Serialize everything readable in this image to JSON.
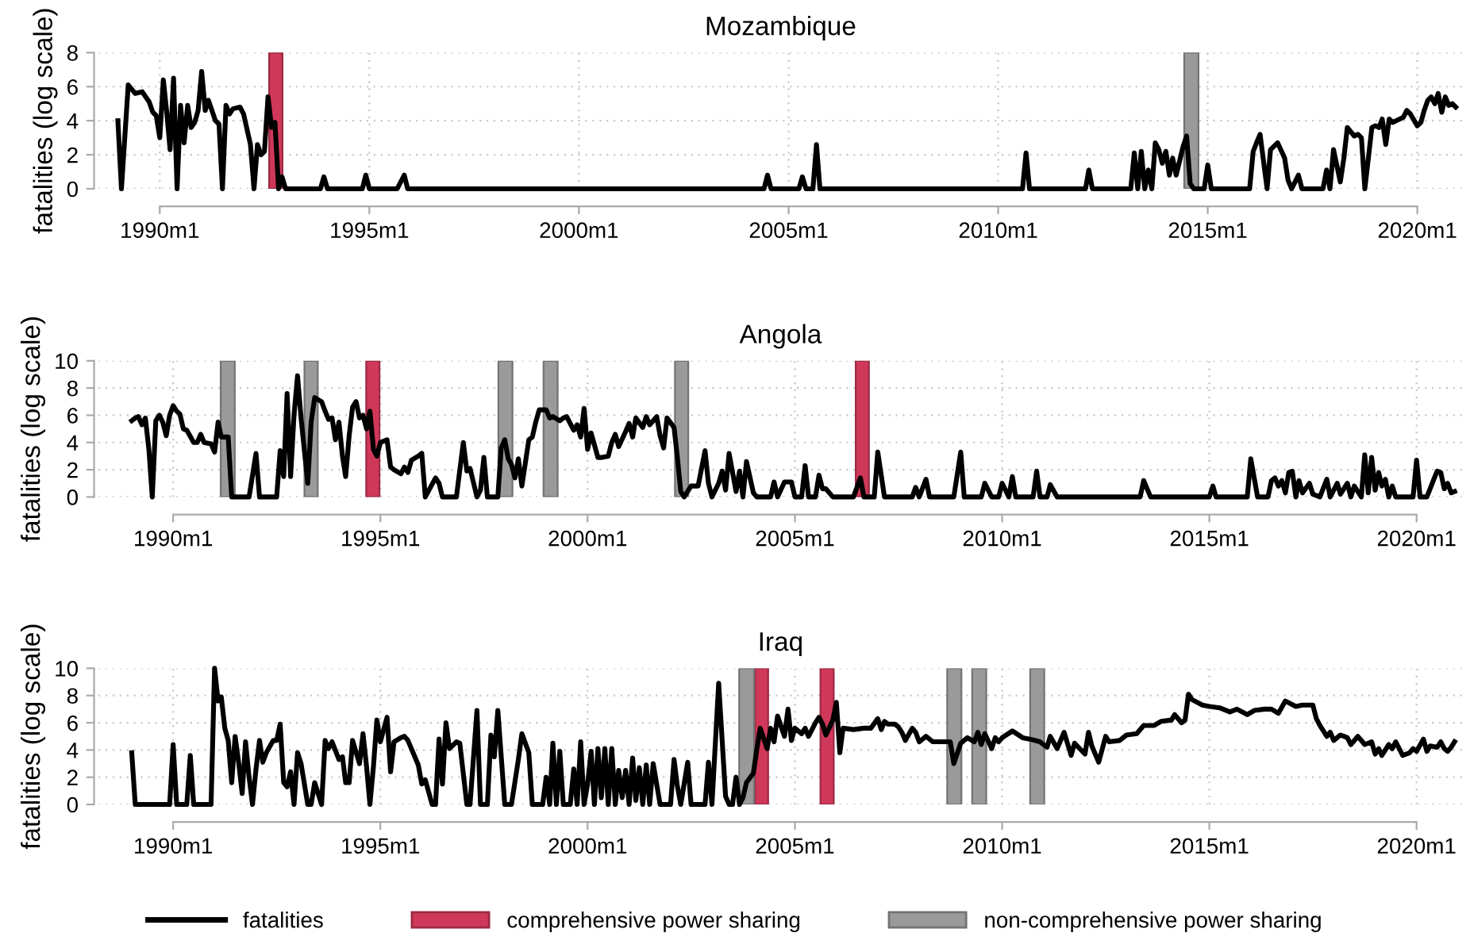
{
  "chart_data": [
    {
      "type": "line",
      "title": "Mozambique",
      "ylabel": "fatalities (log scale)",
      "xlim": [
        "1988-07-16",
        "2021-01-30"
      ],
      "ylim": [
        0,
        8
      ],
      "yticks": [
        0,
        2,
        4,
        6,
        8
      ],
      "xticks": [
        {
          "value": "1990-01",
          "label": "1990m1"
        },
        {
          "value": "1995-01",
          "label": "1995m1"
        },
        {
          "value": "2000-01",
          "label": "2000m1"
        },
        {
          "value": "2005-01",
          "label": "2005m1"
        },
        {
          "value": "2010-01",
          "label": "2010m1"
        },
        {
          "value": "2015-01",
          "label": "2015m1"
        },
        {
          "value": "2020-01",
          "label": "2020m1"
        }
      ],
      "grid": true,
      "series": [
        {
          "color": "#000000",
          "x": [
            "1989-01",
            "1989-02",
            "1989-04",
            "1989-06",
            "1989-08",
            "1989-10",
            "1989-11",
            "1989-12",
            "1990-01",
            "1990-02",
            "1990-03",
            "1990-04",
            "1990-05",
            "1990-06",
            "1990-07",
            "1990-08",
            "1990-09",
            "1990-10",
            "1990-11",
            "1990-12",
            "1991-01",
            "1991-02",
            "1991-03",
            "1991-05",
            "1991-06",
            "1991-07",
            "1991-08",
            "1991-09",
            "1991-10",
            "1991-12",
            "1992-01",
            "1992-03",
            "1992-04",
            "1992-05",
            "1992-06",
            "1992-07",
            "1992-08",
            "1992-09",
            "1992-10",
            "1992-11",
            "1992-12",
            "1993-01",
            "1993-11",
            "1993-12",
            "1994-01",
            "1994-11",
            "1994-12",
            "1995-01",
            "1995-09",
            "1995-11",
            "1995-12",
            "2004-06",
            "2004-07",
            "2004-08",
            "2005-04",
            "2005-05",
            "2005-06",
            "2005-08",
            "2005-09",
            "2005-10",
            "2010-08",
            "2010-09",
            "2010-10",
            "2012-02",
            "2012-03",
            "2012-04",
            "2013-03",
            "2013-04",
            "2013-05",
            "2013-06",
            "2013-07",
            "2013-08",
            "2013-09",
            "2013-10",
            "2013-11",
            "2013-12",
            "2014-01",
            "2014-02",
            "2014-03",
            "2014-04",
            "2014-06",
            "2014-07",
            "2014-08",
            "2014-09",
            "2014-12",
            "2015-01",
            "2015-02",
            "2016-01",
            "2016-02",
            "2016-03",
            "2016-04",
            "2016-06",
            "2016-07",
            "2016-09",
            "2016-11",
            "2016-12",
            "2017-01",
            "2017-03",
            "2017-04",
            "2017-10",
            "2017-11",
            "2017-12",
            "2018-01",
            "2018-03",
            "2018-04",
            "2018-05",
            "2018-07",
            "2018-08",
            "2018-09",
            "2018-10",
            "2018-12",
            "2019-01",
            "2019-02",
            "2019-03",
            "2019-04",
            "2019-05",
            "2019-06",
            "2019-08",
            "2019-09",
            "2019-10",
            "2019-11",
            "2020-01",
            "2020-02",
            "2020-03",
            "2020-04",
            "2020-05",
            "2020-06",
            "2020-07",
            "2020-08",
            "2020-09",
            "2020-10",
            "2020-11",
            "2020-12"
          ],
          "values": [
            4.0,
            0,
            6.1,
            5.6,
            5.7,
            5.1,
            4.5,
            4.3,
            3.0,
            6.4,
            4.6,
            2.3,
            6.5,
            0,
            4.9,
            2.7,
            4.9,
            3.6,
            3.9,
            4.6,
            6.9,
            4.6,
            5.2,
            4.0,
            3.8,
            0,
            4.9,
            4.4,
            4.7,
            4.8,
            4.4,
            2.6,
            0,
            2.6,
            2.0,
            2.2,
            5.4,
            3.6,
            3.9,
            0,
            0.7,
            0,
            0,
            0.7,
            0,
            0,
            0.8,
            0,
            0,
            0.8,
            0,
            0,
            0.8,
            0,
            0,
            0.7,
            0,
            0,
            2.6,
            0,
            0,
            2.1,
            0,
            0,
            1.1,
            0,
            0,
            2.1,
            0,
            2.2,
            0,
            1.1,
            0,
            2.7,
            2.3,
            1.5,
            2.2,
            0.8,
            1.8,
            0.8,
            2.5,
            3.1,
            0.3,
            0,
            0,
            1.4,
            0,
            0,
            2.2,
            2.7,
            3.2,
            0,
            2.3,
            2.7,
            1.8,
            0.5,
            0,
            0.8,
            0,
            0,
            1.1,
            0,
            2.3,
            0.4,
            1.8,
            3.6,
            3.1,
            3.2,
            3.0,
            0,
            3.6,
            3.7,
            3.6,
            4.1,
            2.6,
            4.1,
            3.9,
            4.1,
            4.2,
            4.6,
            4.4,
            3.7,
            3.9,
            4.6,
            5.2,
            5.4,
            5.0,
            5.6,
            4.5,
            5.4,
            4.9,
            5.0,
            4.8
          ]
        }
      ],
      "bands": [
        {
          "axis": "x",
          "from": "1992-08-11",
          "to": "1992-12-05",
          "color": "#d0385a"
        },
        {
          "axis": "x",
          "from": "2014-06-10",
          "to": "2014-10-12",
          "color": "#9a9a9a"
        }
      ]
    },
    {
      "type": "line",
      "title": "Angola",
      "ylabel": "fatalities (log scale)",
      "xlim": [
        "1988-03-14",
        "2021-02-10"
      ],
      "ylim": [
        0,
        10
      ],
      "yticks": [
        0,
        2,
        4,
        6,
        8,
        10
      ],
      "xticks": [
        {
          "value": "1990-01",
          "label": "1990m1"
        },
        {
          "value": "1995-01",
          "label": "1995m1"
        },
        {
          "value": "2000-01",
          "label": "2000m1"
        },
        {
          "value": "2005-01",
          "label": "2005m1"
        },
        {
          "value": "2010-01",
          "label": "2010m1"
        },
        {
          "value": "2015-01",
          "label": "2015m1"
        },
        {
          "value": "2020-01",
          "label": "2020m1"
        }
      ],
      "grid": true,
      "series": [
        {
          "color": "#000000",
          "x": [
            "1989-01",
            "1989-02",
            "1989-03",
            "1989-04",
            "1989-05",
            "1989-06",
            "1989-07",
            "1989-08",
            "1989-09",
            "1989-10",
            "1989-11",
            "1989-12",
            "1990-01",
            "1990-02",
            "1990-03",
            "1990-04",
            "1990-05",
            "1990-07",
            "1990-08",
            "1990-09",
            "1990-10",
            "1990-12",
            "1991-01",
            "1991-02",
            "1991-03",
            "1991-05",
            "1991-06",
            "1991-11",
            "1992-01",
            "1992-02",
            "1992-07",
            "1992-08",
            "1992-09",
            "1992-10",
            "1992-11",
            "1992-12",
            "1993-01",
            "1993-02",
            "1993-04",
            "1993-05",
            "1993-06",
            "1993-08",
            "1993-09",
            "1993-10",
            "1993-11",
            "1993-12",
            "1994-01",
            "1994-02",
            "1994-03",
            "1994-04",
            "1994-05",
            "1994-06",
            "1994-07",
            "1994-08",
            "1994-09",
            "1994-10",
            "1994-11",
            "1994-12",
            "1995-01",
            "1995-03",
            "1995-04",
            "1995-05",
            "1995-07",
            "1995-08",
            "1995-09",
            "1995-10",
            "1995-12",
            "1996-01",
            "1996-02",
            "1996-05",
            "1996-06",
            "1996-07",
            "1996-11",
            "1997-01",
            "1997-02",
            "1997-03",
            "1997-05",
            "1997-06",
            "1997-07",
            "1997-08",
            "1997-11",
            "1997-12",
            "1998-01",
            "1998-02",
            "1998-03",
            "1998-04",
            "1998-05",
            "1998-06",
            "1998-08",
            "1998-09",
            "1998-10",
            "1998-11",
            "1999-01",
            "1999-02",
            "1999-03",
            "1999-05",
            "1999-06",
            "1999-07",
            "1999-08",
            "1999-09",
            "1999-10",
            "1999-11",
            "1999-12",
            "2000-01",
            "2000-02",
            "2000-04",
            "2000-05",
            "2000-07",
            "2000-08",
            "2000-09",
            "2000-10",
            "2000-12",
            "2001-01",
            "2001-02",
            "2001-03",
            "2001-05",
            "2001-06",
            "2001-07",
            "2001-09",
            "2001-10",
            "2001-11",
            "2001-12",
            "2002-02",
            "2002-03",
            "2002-04",
            "2002-05",
            "2002-07",
            "2002-08",
            "2002-09",
            "2002-11",
            "2002-12",
            "2003-01",
            "2003-03",
            "2003-04",
            "2003-05",
            "2003-06",
            "2003-08",
            "2003-09",
            "2003-10",
            "2003-11",
            "2004-01",
            "2004-02",
            "2004-06",
            "2004-07",
            "2004-08",
            "2004-10",
            "2004-12",
            "2005-01",
            "2005-03",
            "2005-04",
            "2005-05",
            "2005-07",
            "2005-08",
            "2005-09",
            "2005-10",
            "2005-12",
            "2006-06",
            "2006-08",
            "2006-09",
            "2006-12",
            "2007-01",
            "2007-03",
            "2007-11",
            "2007-12",
            "2008-01",
            "2008-03",
            "2008-04",
            "2008-11",
            "2009-01",
            "2009-02",
            "2009-07",
            "2009-08",
            "2009-10",
            "2009-12",
            "2010-01",
            "2010-03",
            "2010-04",
            "2010-05",
            "2010-10",
            "2010-11",
            "2010-12",
            "2011-02",
            "2011-03",
            "2011-05",
            "2013-05",
            "2013-06",
            "2013-08",
            "2015-01",
            "2015-02",
            "2015-03",
            "2015-12",
            "2016-01",
            "2016-03",
            "2016-06",
            "2016-07",
            "2016-08",
            "2016-09",
            "2016-10",
            "2016-11",
            "2016-12",
            "2017-01",
            "2017-02",
            "2017-03",
            "2017-04",
            "2017-06",
            "2017-07",
            "2017-09",
            "2017-11",
            "2017-12",
            "2018-02",
            "2018-03",
            "2018-05",
            "2018-06",
            "2018-07",
            "2018-09",
            "2018-10",
            "2018-11",
            "2018-12",
            "2019-01",
            "2019-02",
            "2019-03",
            "2019-04",
            "2019-05",
            "2019-06",
            "2019-07",
            "2019-12",
            "2020-01",
            "2020-02",
            "2020-04",
            "2020-06",
            "2020-07",
            "2020-08",
            "2020-09",
            "2020-10",
            "2020-11",
            "2020-12"
          ],
          "values": [
            5.6,
            5.8,
            5.9,
            5.3,
            5.8,
            3.5,
            0,
            5.6,
            6.0,
            5.5,
            4.5,
            6.0,
            6.7,
            6.3,
            6.1,
            5.0,
            4.9,
            4.0,
            4.0,
            4.6,
            4.0,
            3.9,
            3.3,
            5.5,
            4.4,
            4.4,
            0,
            0,
            3.2,
            0,
            0,
            3.4,
            1.5,
            7.6,
            1.5,
            6.0,
            8.9,
            5.8,
            1.0,
            5.5,
            7.3,
            7.0,
            6.3,
            5.7,
            5.8,
            4.2,
            5.5,
            3.0,
            1.5,
            4.5,
            6.6,
            7.0,
            5.8,
            6.0,
            5.0,
            6.3,
            3.5,
            3.0,
            4.0,
            4.2,
            2.2,
            2.0,
            1.7,
            2.2,
            1.8,
            2.7,
            3.0,
            3.2,
            0,
            1.4,
            1.0,
            0,
            0,
            4.0,
            1.9,
            2.1,
            0,
            0.5,
            2.9,
            0,
            0,
            3.6,
            4.2,
            2.8,
            2.4,
            1.4,
            2.8,
            0.8,
            4.2,
            4.4,
            5.5,
            6.4,
            6.4,
            5.8,
            5.9,
            5.6,
            5.8,
            5.9,
            5.4,
            4.9,
            5.3,
            4.4,
            6.5,
            3.5,
            4.7,
            2.9,
            2.9,
            3.0,
            4.0,
            4.6,
            3.7,
            4.8,
            5.4,
            4.4,
            5.8,
            5.1,
            5.9,
            5.3,
            5.9,
            4.5,
            3.6,
            5.8,
            5.1,
            3.0,
            0.4,
            0,
            0.8,
            0.8,
            0.8,
            3.4,
            1.0,
            0,
            1.0,
            1.9,
            0.5,
            3.2,
            0.4,
            1.9,
            0,
            2.6,
            0.3,
            0,
            0,
            1.1,
            0,
            1.1,
            1.1,
            0,
            0,
            2.3,
            0,
            0,
            1.6,
            0.6,
            0.6,
            0,
            0,
            1.4,
            0,
            0,
            3.3,
            0,
            0,
            0.7,
            0,
            1.3,
            0,
            0,
            3.3,
            0,
            0,
            1.0,
            0,
            0,
            1.0,
            0,
            1.5,
            0,
            0,
            1.9,
            0,
            0,
            0.9,
            0,
            0,
            1.2,
            0,
            0,
            0.8,
            0,
            0,
            2.8,
            0,
            0,
            1.2,
            1.4,
            0.8,
            1.2,
            0.3,
            1.8,
            1.9,
            0,
            1.2,
            0.3,
            1.0,
            0.2,
            0,
            1.3,
            0,
            1.0,
            0.2,
            1.0,
            0,
            0.8,
            0,
            3.1,
            0.3,
            2.9,
            0.5,
            1.8,
            0.8,
            1.3,
            0,
            0.8,
            0,
            0,
            2.7,
            0,
            0,
            1.3,
            1.9,
            1.8,
            0.6,
            1.0,
            0.3,
            0.4
          ]
        }
      ],
      "bands": [
        {
          "axis": "x",
          "from": "1991-02-24",
          "to": "1991-06-28",
          "color": "#9a9a9a"
        },
        {
          "axis": "x",
          "from": "1993-03-03",
          "to": "1993-06-28",
          "color": "#9a9a9a"
        },
        {
          "axis": "x",
          "from": "1994-08-29",
          "to": "1994-12-24",
          "color": "#d0385a"
        },
        {
          "axis": "x",
          "from": "1997-11-06",
          "to": "1998-03-10",
          "color": "#9a9a9a"
        },
        {
          "axis": "x",
          "from": "1998-12-09",
          "to": "1999-04-12",
          "color": "#9a9a9a"
        },
        {
          "axis": "x",
          "from": "2002-02-09",
          "to": "2002-06-06",
          "color": "#9a9a9a"
        },
        {
          "axis": "x",
          "from": "2006-06-21",
          "to": "2006-10-15",
          "color": "#d0385a"
        }
      ]
    },
    {
      "type": "line",
      "title": "Iraq",
      "ylabel": "fatalities (log scale)",
      "xlim": [
        "1988-03-14",
        "2021-02-10"
      ],
      "ylim": [
        0,
        10
      ],
      "yticks": [
        0,
        2,
        4,
        6,
        8,
        10
      ],
      "xticks": [
        {
          "value": "1990-01",
          "label": "1990m1"
        },
        {
          "value": "1995-01",
          "label": "1995m1"
        },
        {
          "value": "2000-01",
          "label": "2000m1"
        },
        {
          "value": "2005-01",
          "label": "2005m1"
        },
        {
          "value": "2010-01",
          "label": "2010m1"
        },
        {
          "value": "2015-01",
          "label": "2015m1"
        },
        {
          "value": "2020-01",
          "label": "2020m1"
        }
      ],
      "grid": true,
      "legend": "bottom",
      "series": [
        {
          "name": "fatalities",
          "color": "#000000",
          "x": [
            "1989-01",
            "1989-02",
            "1989-12",
            "1990-01",
            "1990-02",
            "1990-05",
            "1990-06",
            "1990-07",
            "1990-12",
            "1991-01",
            "1991-02",
            "1991-03",
            "1991-04",
            "1991-05",
            "1991-06",
            "1991-07",
            "1991-08",
            "1991-09",
            "1991-10",
            "1991-11",
            "1991-12",
            "1992-01",
            "1992-02",
            "1992-03",
            "1992-04",
            "1992-06",
            "1992-07",
            "1992-08",
            "1992-09",
            "1992-10",
            "1992-11",
            "1992-12",
            "1993-01",
            "1993-02",
            "1993-04",
            "1993-05",
            "1993-06",
            "1993-08",
            "1993-09",
            "1993-10",
            "1993-11",
            "1994-01",
            "1994-02",
            "1994-03",
            "1994-04",
            "1994-05",
            "1994-07",
            "1994-08",
            "1994-09",
            "1994-10",
            "1994-11",
            "1994-12",
            "1995-01",
            "1995-03",
            "1995-04",
            "1995-05",
            "1995-07",
            "1995-08",
            "1995-09",
            "1995-10",
            "1995-12",
            "1996-01",
            "1996-02",
            "1996-04",
            "1996-05",
            "1996-06",
            "1996-07",
            "1996-08",
            "1996-09",
            "1996-11",
            "1996-12",
            "1997-02",
            "1997-03",
            "1997-05",
            "1997-06",
            "1997-08",
            "1997-09",
            "1997-10",
            "1997-11",
            "1998-01",
            "1998-03",
            "1998-05",
            "1998-06",
            "1998-08",
            "1998-09",
            "1998-12",
            "1999-01",
            "1999-02",
            "1999-03",
            "1999-04",
            "1999-05",
            "1999-06",
            "1999-08",
            "1999-09",
            "1999-10",
            "1999-11",
            "1999-12",
            "2000-01",
            "2000-02",
            "2000-03",
            "2000-04",
            "2000-05",
            "2000-06",
            "2000-07",
            "2000-08",
            "2000-09",
            "2000-10",
            "2000-11",
            "2000-12",
            "2001-01",
            "2001-02",
            "2001-03",
            "2001-04",
            "2001-05",
            "2001-06",
            "2001-07",
            "2001-08",
            "2001-10",
            "2002-01",
            "2002-02",
            "2002-03",
            "2002-04",
            "2002-06",
            "2002-07",
            "2002-11",
            "2002-12",
            "2003-01",
            "2003-03",
            "2003-05",
            "2003-06",
            "2003-07",
            "2003-08",
            "2003-09",
            "2003-10",
            "2003-11",
            "2004-01",
            "2004-02",
            "2004-03",
            "2004-05",
            "2004-06",
            "2004-07",
            "2004-08",
            "2004-10",
            "2004-11",
            "2004-12",
            "2005-01",
            "2005-03",
            "2005-04",
            "2005-05",
            "2005-07",
            "2005-08",
            "2005-09",
            "2005-10",
            "2005-12",
            "2006-01",
            "2006-02",
            "2006-03",
            "2006-06",
            "2006-09",
            "2006-11",
            "2007-01",
            "2007-02",
            "2007-03",
            "2007-04",
            "2007-06",
            "2007-07",
            "2007-08",
            "2007-09",
            "2007-11",
            "2007-12",
            "2008-01",
            "2008-03",
            "2008-05",
            "2008-08",
            "2008-10",
            "2008-11",
            "2009-01",
            "2009-03",
            "2009-05",
            "2009-06",
            "2009-07",
            "2009-08",
            "2009-10",
            "2009-11",
            "2009-12",
            "2010-01",
            "2010-04",
            "2010-07",
            "2010-09",
            "2010-12",
            "2011-02",
            "2011-03",
            "2011-05",
            "2011-07",
            "2011-09",
            "2011-10",
            "2012-01",
            "2012-02",
            "2012-03",
            "2012-05",
            "2012-07",
            "2012-08",
            "2012-11",
            "2013-01",
            "2013-04",
            "2013-06",
            "2013-09",
            "2013-11",
            "2014-02",
            "2014-03",
            "2014-05",
            "2014-06",
            "2014-07",
            "2014-08",
            "2014-11",
            "2015-01",
            "2015-04",
            "2015-07",
            "2015-09",
            "2015-12",
            "2016-02",
            "2016-05",
            "2016-07",
            "2016-09",
            "2016-11",
            "2017-02",
            "2017-04",
            "2017-07",
            "2017-08",
            "2017-09",
            "2017-11",
            "2017-12",
            "2018-01",
            "2018-03",
            "2018-04",
            "2018-05",
            "2018-06",
            "2018-08",
            "2018-09",
            "2018-10",
            "2018-12",
            "2019-01",
            "2019-02",
            "2019-03",
            "2019-05",
            "2019-06",
            "2019-07",
            "2019-08",
            "2019-09",
            "2019-11",
            "2019-12",
            "2020-01",
            "2020-03",
            "2020-04",
            "2020-05",
            "2020-07",
            "2020-08",
            "2020-09",
            "2020-10",
            "2020-11",
            "2020-12"
          ],
          "values": [
            3.8,
            0,
            0,
            4.4,
            0,
            0,
            3.6,
            0,
            0,
            10.0,
            7.6,
            7.9,
            5.6,
            4.7,
            1.6,
            5.0,
            3.1,
            0.8,
            4.6,
            2.0,
            0,
            2.6,
            4.7,
            3.1,
            3.8,
            4.7,
            4.7,
            5.9,
            1.6,
            1.3,
            2.4,
            0,
            3.8,
            3.0,
            0,
            0,
            1.6,
            0,
            4.7,
            4.1,
            4.6,
            3.3,
            3.5,
            1.6,
            1.6,
            4.7,
            3.0,
            5.2,
            2.8,
            0,
            2.8,
            6.2,
            4.6,
            6.4,
            2.4,
            4.6,
            4.9,
            5.0,
            4.7,
            4.1,
            2.9,
            1.5,
            1.8,
            0,
            0,
            4.8,
            1.5,
            6.0,
            4.1,
            4.6,
            4.5,
            0,
            0,
            6.9,
            0,
            0,
            5.1,
            3.5,
            6.9,
            0,
            0,
            3.3,
            5.2,
            3.8,
            0,
            0,
            2.0,
            0,
            4.5,
            0,
            3.9,
            0,
            0,
            2.6,
            0,
            4.6,
            0,
            1.5,
            3.9,
            0,
            4.1,
            0.5,
            4.1,
            0,
            4.1,
            0,
            2.5,
            0.5,
            2.5,
            0,
            3.4,
            0.3,
            2.7,
            0,
            2.9,
            0,
            3.0,
            0,
            0,
            3.3,
            1.4,
            0,
            3.1,
            0,
            0,
            3.1,
            0,
            8.9,
            0.6,
            0,
            0,
            2.0,
            0,
            0.5,
            1.6,
            2.3,
            4.1,
            5.6,
            4.1,
            5.6,
            4.6,
            6.5,
            5.0,
            7.0,
            4.7,
            5.6,
            5.2,
            5.6,
            5.0,
            6.0,
            6.4,
            5.9,
            5.1,
            6.2,
            7.5,
            3.8,
            5.6,
            5.5,
            5.6,
            5.6,
            6.3,
            5.5,
            6.1,
            5.9,
            5.9,
            5.7,
            5.3,
            4.7,
            5.6,
            5.3,
            4.6,
            5.0,
            4.6,
            4.6,
            4.6,
            3.0,
            4.5,
            4.9,
            4.6,
            5.3,
            4.4,
            5.2,
            4.1,
            4.9,
            4.6,
            4.9,
            5.4,
            4.9,
            4.8,
            4.6,
            4.2,
            5.0,
            4.1,
            5.3,
            3.6,
            4.5,
            3.7,
            5.3,
            4.3,
            3.1,
            5.0,
            4.6,
            4.7,
            5.1,
            5.2,
            5.8,
            5.8,
            6.1,
            6.2,
            6.6,
            6.0,
            6.2,
            8.1,
            7.7,
            7.3,
            7.2,
            7.1,
            6.8,
            7.0,
            6.6,
            6.9,
            7.0,
            7.0,
            6.7,
            7.6,
            7.2,
            7.3,
            7.3,
            6.3,
            5.8,
            5.0,
            5.3,
            4.7,
            5.1,
            5.0,
            4.9,
            4.4,
            5.0,
            4.7,
            4.4,
            4.6,
            3.7,
            4.1,
            3.6,
            4.4,
            4.1,
            4.6,
            4.1,
            3.6,
            3.8,
            4.1,
            3.9,
            4.8,
            3.9,
            4.3,
            4.2,
            4.6,
            4.1,
            3.9,
            4.2,
            4.6
          ]
        }
      ],
      "bands": [
        {
          "axis": "x",
          "from": "2004-01-15",
          "to": "2004-05-10",
          "color": "#d0385a",
          "label": "comprehensive power sharing"
        },
        {
          "axis": "x",
          "from": "2005-08-14",
          "to": "2005-12-09",
          "color": "#d0385a"
        },
        {
          "axis": "x",
          "from": "2003-08-29",
          "to": "2004-01-07",
          "color": "#9a9a9a",
          "label": "non-comprehensive power sharing"
        },
        {
          "axis": "x",
          "from": "2008-09-04",
          "to": "2009-01-07",
          "color": "#9a9a9a"
        },
        {
          "axis": "x",
          "from": "2009-04-12",
          "to": "2009-08-14",
          "color": "#9a9a9a"
        },
        {
          "axis": "x",
          "from": "2010-09-05",
          "to": "2011-01-07",
          "color": "#9a9a9a"
        }
      ]
    }
  ]
}
